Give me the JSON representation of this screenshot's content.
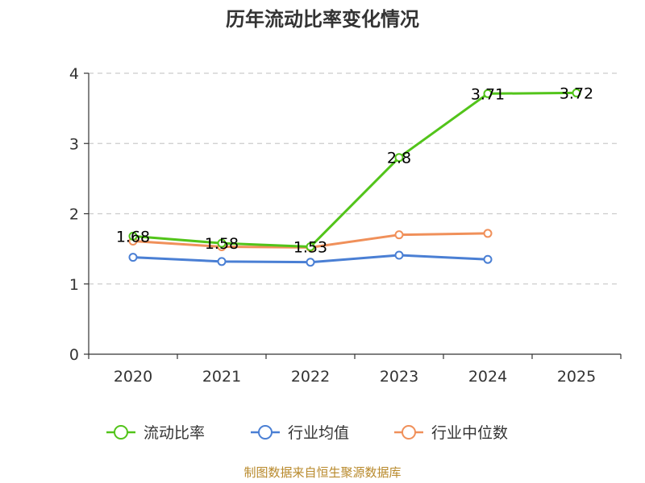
{
  "chart_data": {
    "type": "line",
    "title": "历年流动比率变化情况",
    "categories": [
      "2020",
      "2021",
      "2022",
      "2023",
      "2024",
      "2025"
    ],
    "ylim": [
      0,
      4
    ],
    "yticks": [
      "0",
      "1",
      "2",
      "3",
      "4"
    ],
    "grid": true,
    "legend_position": "bottom",
    "series": [
      {
        "name": "流动比率",
        "color": "#52c41a",
        "values": [
          1.68,
          1.58,
          1.53,
          2.8,
          3.71,
          3.72
        ],
        "labels": [
          "1.68",
          "1.58",
          "1.53",
          "2.8",
          "3.71",
          "3.72"
        ]
      },
      {
        "name": "行业均值",
        "color": "#4a7fd4",
        "values": [
          1.38,
          1.32,
          1.31,
          1.41,
          1.35,
          null
        ]
      },
      {
        "name": "行业中位数",
        "color": "#f0905a",
        "values": [
          1.61,
          1.53,
          1.52,
          1.7,
          1.72,
          null
        ]
      }
    ],
    "source": "制图数据来自恒生聚源数据库"
  }
}
